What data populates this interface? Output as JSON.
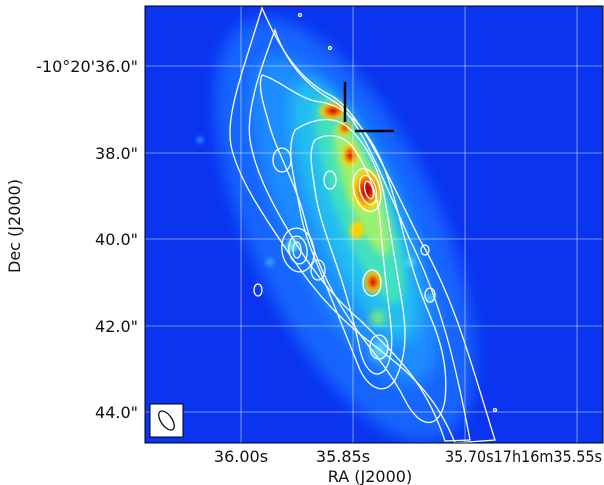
{
  "figure": {
    "xlabel": "RA (J2000)",
    "ylabel": "Dec (J2000)",
    "y_ticks": [
      "-10°20'36.0\"",
      "38.0\"",
      "40.0\"",
      "42.0\"",
      "44.0\""
    ],
    "x_ticks": [
      "36.00s",
      "35.85s",
      "35.70s17h16m35.55s"
    ],
    "colormap": "jet",
    "contour_color": "#ffffff",
    "grid_color": "#ffffff",
    "marker_color": "#000000",
    "beam_icon": "ellipse-beam-icon"
  }
}
